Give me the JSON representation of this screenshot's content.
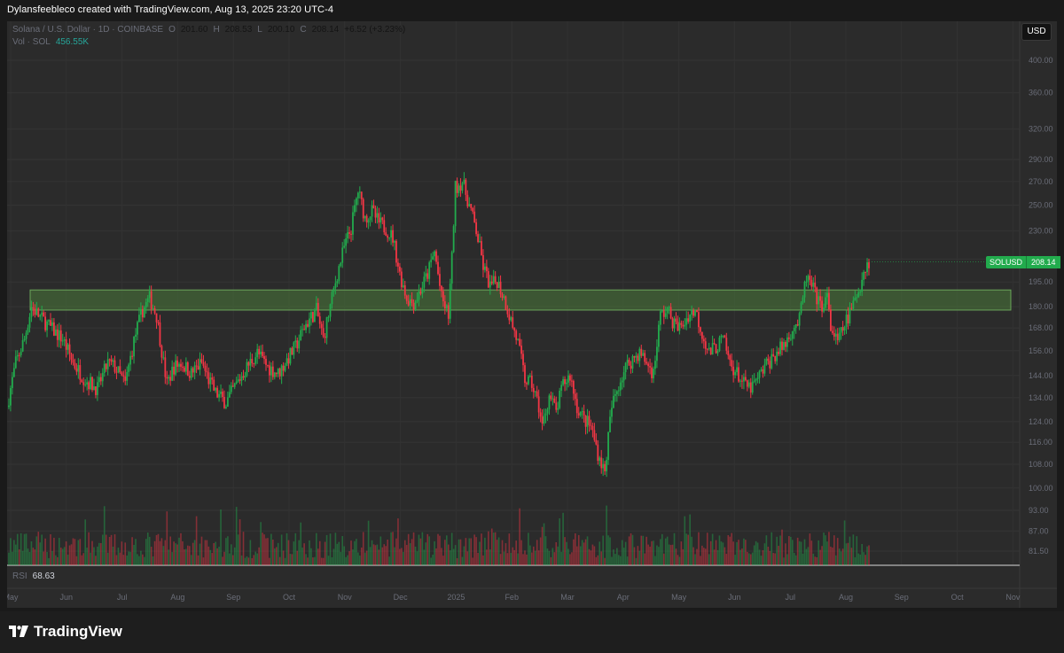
{
  "attribution": "Dylansfeebleco created with TradingView.com, Aug 13, 2025 23:20 UTC-4",
  "legend": {
    "symbol": "Solana / U.S. Dollar · 1D · COINBASE",
    "open_label": "O",
    "open": "201.60",
    "high_label": "H",
    "high": "208.53",
    "low_label": "L",
    "low": "200.10",
    "close_label": "C",
    "close": "208.14",
    "change": "+6.52 (+3.23%)"
  },
  "volume_legend": {
    "label": "Vol · SOL",
    "value": "456.55K"
  },
  "rsi_legend": {
    "label": "RSI",
    "value": "68.63"
  },
  "currency_button": "USD",
  "price_tag": {
    "symbol": "SOLUSD",
    "price": "208.14"
  },
  "brand": "TradingView",
  "colors": {
    "up": "#22ab4d",
    "down": "#f23645",
    "zone": "#4a7a3a",
    "background": "#2b2b2b"
  },
  "chart_data": {
    "type": "candlestick",
    "y_scale": "log",
    "y_ticks": [
      81.5,
      87.0,
      93.0,
      100.0,
      108.0,
      116.0,
      124.0,
      134.0,
      144.0,
      156.0,
      168.0,
      180.0,
      195.0,
      210.0,
      230.0,
      250.0,
      270.0,
      290.0,
      320.0,
      360.0,
      400.0
    ],
    "y_tick_labels": [
      "81.50",
      "87.00",
      "93.00",
      "100.00",
      "108.00",
      "116.00",
      "124.00",
      "134.00",
      "144.00",
      "156.00",
      "168.00",
      "180.00",
      "195.00",
      "210.00",
      "230.00",
      "250.00",
      "270.00",
      "290.00",
      "320.00",
      "360.00",
      "400.00"
    ],
    "x_labels": [
      "May",
      "Jun",
      "Jul",
      "Aug",
      "Sep",
      "Oct",
      "Nov",
      "Dec",
      "2025",
      "Feb",
      "Mar",
      "Apr",
      "May",
      "Jun",
      "Jul",
      "Aug",
      "Sep",
      "Oct",
      "Nov"
    ],
    "zone": {
      "low": 178,
      "high": 190
    },
    "last_price": 208.14,
    "close_path": [
      [
        0,
        130
      ],
      [
        5,
        150
      ],
      [
        10,
        162
      ],
      [
        14,
        180
      ],
      [
        18,
        175
      ],
      [
        25,
        168
      ],
      [
        32,
        162
      ],
      [
        38,
        150
      ],
      [
        45,
        142
      ],
      [
        52,
        138
      ],
      [
        58,
        150
      ],
      [
        62,
        148
      ],
      [
        68,
        140
      ],
      [
        74,
        165
      ],
      [
        78,
        178
      ],
      [
        82,
        185
      ],
      [
        86,
        175
      ],
      [
        90,
        150
      ],
      [
        92,
        140
      ],
      [
        96,
        148
      ],
      [
        100,
        150
      ],
      [
        106,
        145
      ],
      [
        112,
        150
      ],
      [
        116,
        142
      ],
      [
        120,
        136
      ],
      [
        126,
        132
      ],
      [
        132,
        140
      ],
      [
        138,
        148
      ],
      [
        144,
        155
      ],
      [
        150,
        148
      ],
      [
        156,
        145
      ],
      [
        160,
        150
      ],
      [
        166,
        158
      ],
      [
        172,
        170
      ],
      [
        178,
        178
      ],
      [
        182,
        162
      ],
      [
        186,
        180
      ],
      [
        190,
        200
      ],
      [
        194,
        218
      ],
      [
        198,
        232
      ],
      [
        202,
        262
      ],
      [
        206,
        240
      ],
      [
        210,
        245
      ],
      [
        214,
        236
      ],
      [
        218,
        232
      ],
      [
        222,
        225
      ],
      [
        226,
        200
      ],
      [
        230,
        185
      ],
      [
        234,
        182
      ],
      [
        238,
        190
      ],
      [
        242,
        200
      ],
      [
        246,
        215
      ],
      [
        250,
        185
      ],
      [
        254,
        175
      ],
      [
        256,
        210
      ],
      [
        258,
        265
      ],
      [
        262,
        270
      ],
      [
        266,
        250
      ],
      [
        270,
        230
      ],
      [
        274,
        205
      ],
      [
        278,
        192
      ],
      [
        282,
        196
      ],
      [
        286,
        185
      ],
      [
        290,
        172
      ],
      [
        294,
        160
      ],
      [
        298,
        142
      ],
      [
        302,
        140
      ],
      [
        306,
        130
      ],
      [
        308,
        122
      ],
      [
        312,
        135
      ],
      [
        316,
        128
      ],
      [
        320,
        140
      ],
      [
        324,
        144
      ],
      [
        328,
        130
      ],
      [
        332,
        125
      ],
      [
        336,
        122
      ],
      [
        340,
        112
      ],
      [
        344,
        105
      ],
      [
        346,
        118
      ],
      [
        348,
        130
      ],
      [
        352,
        140
      ],
      [
        356,
        148
      ],
      [
        360,
        152
      ],
      [
        364,
        155
      ],
      [
        368,
        150
      ],
      [
        372,
        145
      ],
      [
        376,
        175
      ],
      [
        380,
        178
      ],
      [
        384,
        170
      ],
      [
        388,
        168
      ],
      [
        392,
        175
      ],
      [
        396,
        178
      ],
      [
        400,
        165
      ],
      [
        404,
        155
      ],
      [
        408,
        158
      ],
      [
        412,
        162
      ],
      [
        416,
        150
      ],
      [
        420,
        145
      ],
      [
        424,
        140
      ],
      [
        428,
        138
      ],
      [
        432,
        142
      ],
      [
        436,
        148
      ],
      [
        440,
        152
      ],
      [
        444,
        156
      ],
      [
        448,
        160
      ],
      [
        452,
        168
      ],
      [
        456,
        172
      ],
      [
        460,
        198
      ],
      [
        464,
        190
      ],
      [
        468,
        180
      ],
      [
        472,
        185
      ],
      [
        474,
        168
      ],
      [
        478,
        160
      ],
      [
        482,
        170
      ],
      [
        486,
        178
      ],
      [
        490,
        190
      ],
      [
        494,
        205
      ],
      [
        496,
        208
      ]
    ]
  }
}
